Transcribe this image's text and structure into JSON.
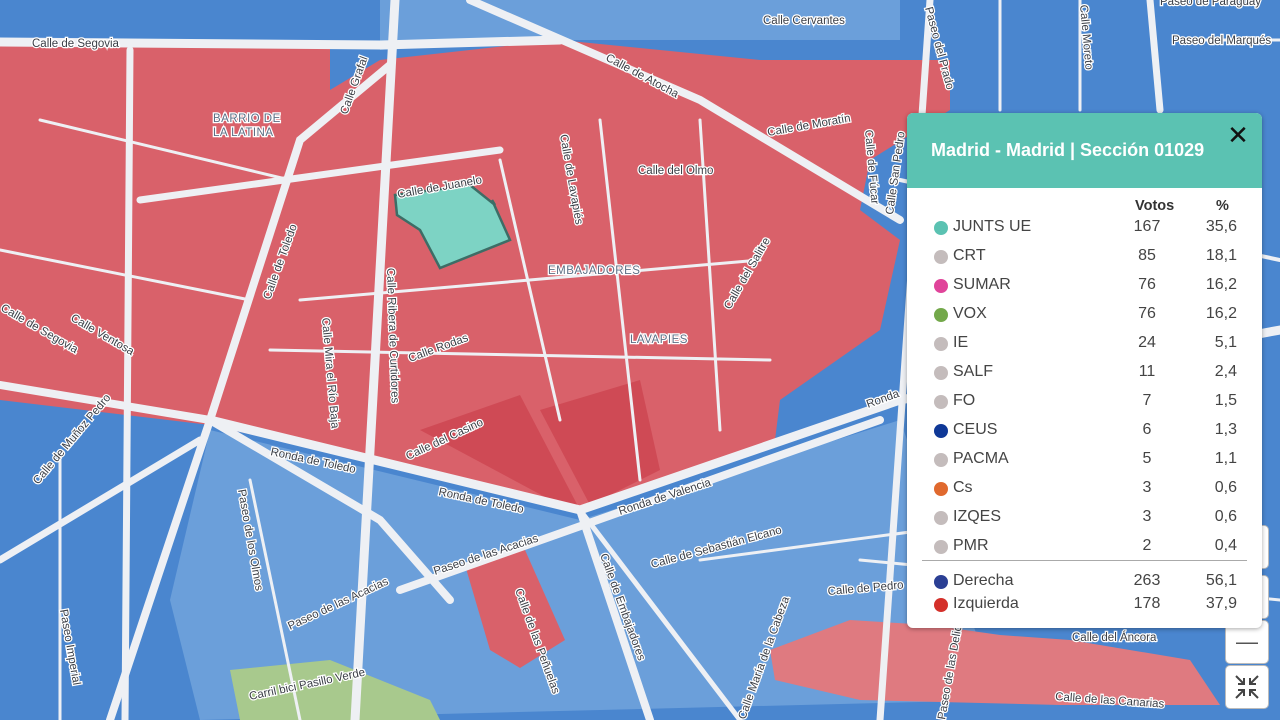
{
  "map": {
    "colors": {
      "red": "#d9616a",
      "red_dark": "#cf4a55",
      "blue": "#4a86cf",
      "blue_light": "#6b9fda",
      "green": "#a8c98d",
      "selected": "#7dd3c4",
      "road": "#eef0f4"
    },
    "area_labels": [
      "BARRIO DE",
      "LA LATINA",
      "EMBAJADORES",
      "LAVAPIES"
    ],
    "street_labels": [
      "Calle de Segovia",
      "Calle Grafal",
      "Calle de Juanelo",
      "Calle de Lavapiés",
      "Calle del Olmo",
      "Calle de Atocha",
      "Calle de Moratín",
      "Calle Cervantes",
      "Paseo del Prado",
      "Calle Moreto",
      "Paseo de Paraguay",
      "Paseo del Marqués",
      "Calle de Fúcar",
      "Calle San Pedro",
      "Calle del Salitre",
      "Calle de Toledo",
      "Calle Ventosa",
      "Calle Ribera de Curtidores",
      "Calle Mira el Río Baja",
      "Calle Rodas",
      "Calle del Casino",
      "Ronda de Toledo",
      "Ronda de Valencia",
      "Calle de Muñoz Pedro",
      "Calle de Segovia",
      "Paseo de los Olmos",
      "Paseo de las Acacias",
      "Calle de las Peñuelas",
      "Calle de Embajadores",
      "Calle de Sebastián Elcano",
      "Calle de Pedro",
      "Calle del Áncora",
      "Calle de las Canarias",
      "Paseo Imperial",
      "Carril bici Pasillo Verde",
      "Paseo de las Delicias",
      "Calle María de la Cabeza",
      "Ronda"
    ]
  },
  "popup": {
    "title": "Madrid - Madrid | Sección 01029",
    "close_icon": "close-icon",
    "col_votes": "Votos",
    "col_pct": "%",
    "rows": [
      {
        "name": "JUNTS UE",
        "votes": "167",
        "pct": "35,6",
        "color": "#5bc2b2"
      },
      {
        "name": "CRT",
        "votes": "85",
        "pct": "18,1",
        "color": "#c4bcbc"
      },
      {
        "name": "SUMAR",
        "votes": "76",
        "pct": "16,2",
        "color": "#e0449a"
      },
      {
        "name": "VOX",
        "votes": "76",
        "pct": "16,2",
        "color": "#73a84a"
      },
      {
        "name": "IE",
        "votes": "24",
        "pct": "5,1",
        "color": "#c4bcbc"
      },
      {
        "name": "SALF",
        "votes": "11",
        "pct": "2,4",
        "color": "#c4bcbc"
      },
      {
        "name": "FO",
        "votes": "7",
        "pct": "1,5",
        "color": "#c4bcbc"
      },
      {
        "name": "CEUS",
        "votes": "6",
        "pct": "1,3",
        "color": "#0f3897"
      },
      {
        "name": "PACMA",
        "votes": "5",
        "pct": "1,1",
        "color": "#c4bcbc"
      },
      {
        "name": "Cs",
        "votes": "3",
        "pct": "0,6",
        "color": "#e0692e"
      },
      {
        "name": "IZQES",
        "votes": "3",
        "pct": "0,6",
        "color": "#c4bcbc"
      },
      {
        "name": "PMR",
        "votes": "2",
        "pct": "0,4",
        "color": "#c4bcbc"
      }
    ],
    "totals": [
      {
        "name": "Derecha",
        "votes": "263",
        "pct": "56,1",
        "color": "#2b3f94"
      },
      {
        "name": "Izquierda",
        "votes": "178",
        "pct": "37,9",
        "color": "#d4302a"
      }
    ]
  },
  "controls": {
    "zoom_out": "—",
    "collapse_icon": "collapse-icon"
  }
}
